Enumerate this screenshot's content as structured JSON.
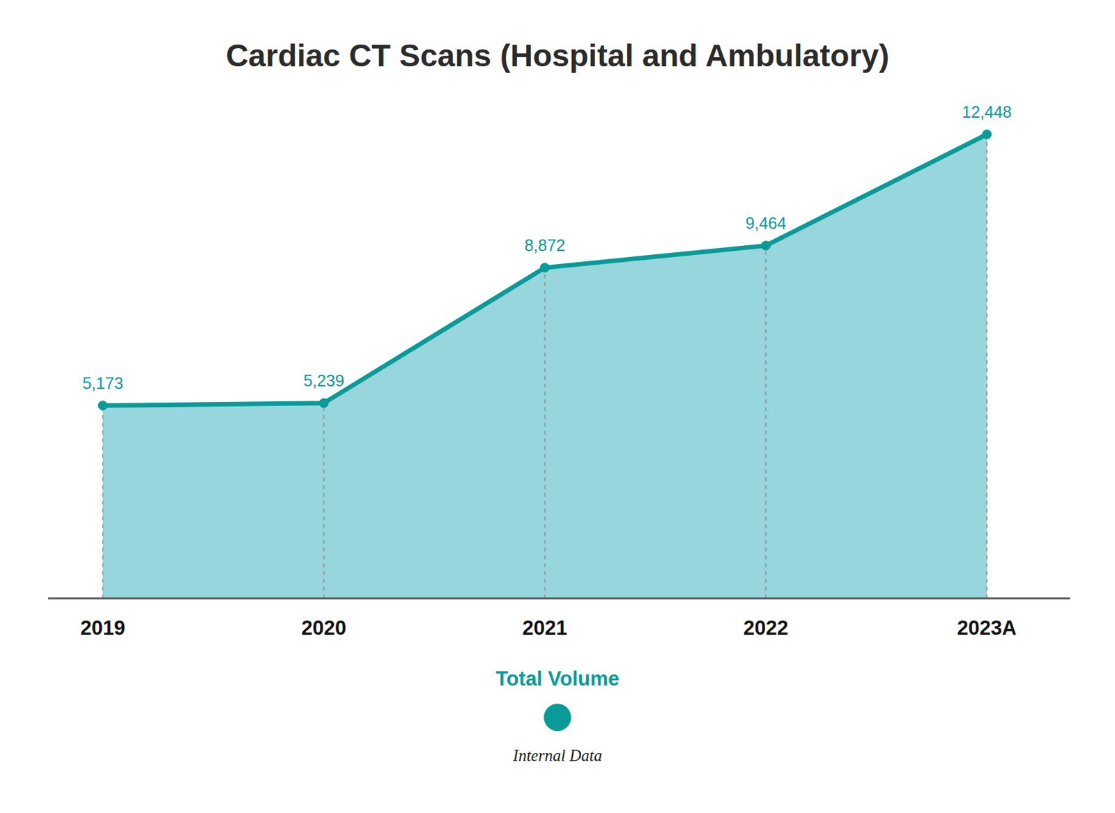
{
  "chart_data": {
    "type": "area",
    "title": "Cardiac CT Scans (Hospital and Ambulatory)",
    "categories": [
      "2019",
      "2020",
      "2021",
      "2022",
      "2023A"
    ],
    "series": [
      {
        "name": "Total Volume",
        "color": "#0a9a98",
        "values": [
          5173,
          5239,
          8872,
          9464,
          12448
        ],
        "value_labels": [
          "5,173",
          "5,239",
          "8,872",
          "9,464",
          "12,448"
        ]
      }
    ],
    "ylim": [
      0,
      13000
    ],
    "yticks": [],
    "tick_labels": "x",
    "data_labels": true,
    "marker": "circle",
    "legend": "bottom",
    "source": "Internal Data"
  }
}
